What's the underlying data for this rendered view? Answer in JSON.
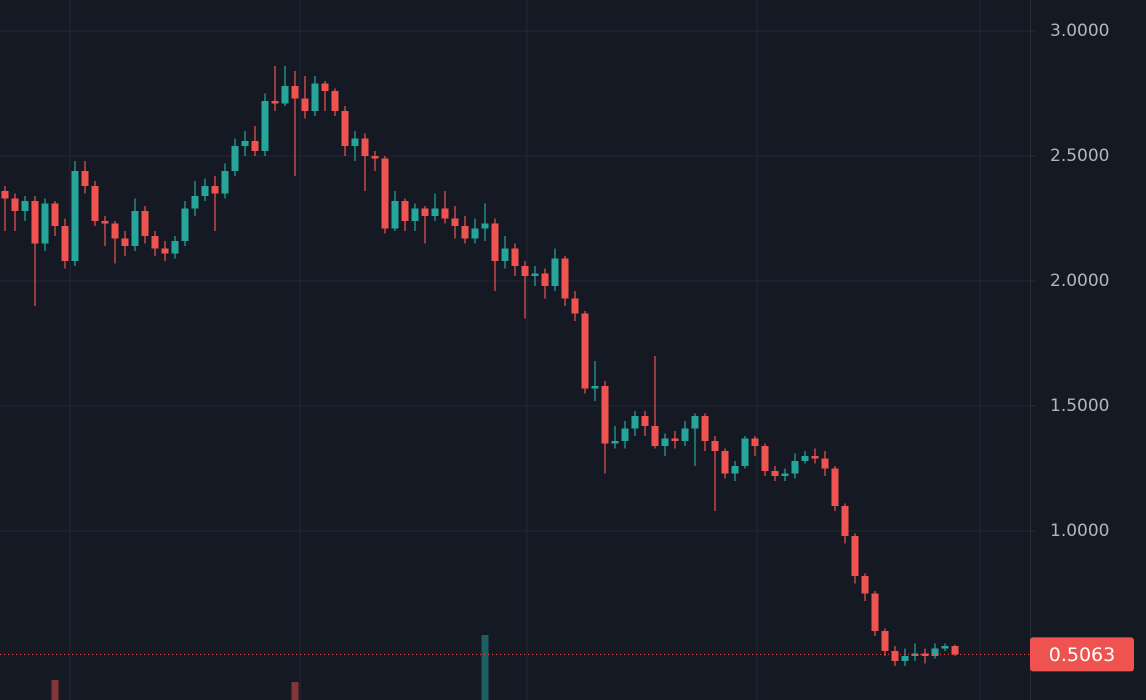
{
  "chart_data": {
    "type": "candlestick",
    "open": [
      2.36,
      2.33,
      2.28,
      2.32,
      2.15,
      2.31,
      2.22,
      2.08,
      2.44,
      2.38,
      2.24,
      2.23,
      2.17,
      2.14,
      2.28,
      2.18,
      2.13,
      2.11,
      2.16,
      2.29,
      2.34,
      2.38,
      2.35,
      2.44,
      2.54,
      2.56,
      2.52,
      2.72,
      2.71,
      2.78,
      2.73,
      2.68,
      2.79,
      2.76,
      2.68,
      2.54,
      2.57,
      2.5,
      2.49,
      2.21,
      2.32,
      2.24,
      2.29,
      2.26,
      2.29,
      2.25,
      2.22,
      2.17,
      2.21,
      2.23,
      2.08,
      2.13,
      2.06,
      2.02,
      2.03,
      1.98,
      2.09,
      1.93,
      1.87,
      1.57,
      1.58,
      1.35,
      1.36,
      1.41,
      1.46,
      1.42,
      1.34,
      1.37,
      1.36,
      1.41,
      1.46,
      1.36,
      1.32,
      1.23,
      1.26,
      1.37,
      1.34,
      1.24,
      1.22,
      1.23,
      1.28,
      1.3,
      1.29,
      1.25,
      1.1,
      0.98,
      0.82,
      0.75,
      0.6,
      0.52,
      0.48,
      0.5,
      0.51,
      0.5,
      0.53,
      0.54
    ],
    "high": [
      2.38,
      2.35,
      2.34,
      2.34,
      2.33,
      2.32,
      2.25,
      2.48,
      2.48,
      2.4,
      2.26,
      2.24,
      2.2,
      2.33,
      2.3,
      2.2,
      2.16,
      2.18,
      2.32,
      2.4,
      2.41,
      2.42,
      2.47,
      2.57,
      2.6,
      2.62,
      2.75,
      2.86,
      2.86,
      2.84,
      2.82,
      2.82,
      2.8,
      2.77,
      2.7,
      2.6,
      2.59,
      2.52,
      2.5,
      2.36,
      2.33,
      2.31,
      2.3,
      2.35,
      2.36,
      2.3,
      2.26,
      2.25,
      2.31,
      2.25,
      2.18,
      2.15,
      2.08,
      2.06,
      2.05,
      2.13,
      2.1,
      1.96,
      1.88,
      1.68,
      1.6,
      1.42,
      1.44,
      1.48,
      1.48,
      1.7,
      1.39,
      1.4,
      1.44,
      1.47,
      1.47,
      1.38,
      1.33,
      1.28,
      1.38,
      1.38,
      1.35,
      1.26,
      1.25,
      1.31,
      1.32,
      1.33,
      1.32,
      1.26,
      1.11,
      0.99,
      0.83,
      0.76,
      0.61,
      0.54,
      0.53,
      0.55,
      0.53,
      0.55,
      0.55,
      0.545
    ],
    "low": [
      2.2,
      2.2,
      2.24,
      1.9,
      2.12,
      2.18,
      2.05,
      2.06,
      2.35,
      2.22,
      2.14,
      2.07,
      2.1,
      2.12,
      2.15,
      2.1,
      2.08,
      2.09,
      2.14,
      2.26,
      2.32,
      2.2,
      2.33,
      2.42,
      2.5,
      2.5,
      2.5,
      2.68,
      2.7,
      2.42,
      2.65,
      2.66,
      2.68,
      2.66,
      2.5,
      2.48,
      2.36,
      2.44,
      2.19,
      2.2,
      2.2,
      2.2,
      2.15,
      2.24,
      2.23,
      2.17,
      2.15,
      2.15,
      2.16,
      1.96,
      2.05,
      2.02,
      1.85,
      1.98,
      1.93,
      1.96,
      1.9,
      1.84,
      1.55,
      1.52,
      1.23,
      1.33,
      1.33,
      1.38,
      1.38,
      1.33,
      1.3,
      1.33,
      1.34,
      1.26,
      1.32,
      1.08,
      1.21,
      1.2,
      1.25,
      1.3,
      1.22,
      1.2,
      1.2,
      1.21,
      1.27,
      1.27,
      1.22,
      1.08,
      0.95,
      0.79,
      0.72,
      0.58,
      0.5,
      0.46,
      0.46,
      0.48,
      0.47,
      0.49,
      0.52,
      0.5
    ],
    "close": [
      2.33,
      2.28,
      2.32,
      2.15,
      2.31,
      2.22,
      2.08,
      2.44,
      2.38,
      2.24,
      2.23,
      2.17,
      2.14,
      2.28,
      2.18,
      2.13,
      2.11,
      2.16,
      2.29,
      2.34,
      2.38,
      2.35,
      2.44,
      2.54,
      2.56,
      2.52,
      2.72,
      2.71,
      2.78,
      2.73,
      2.68,
      2.79,
      2.76,
      2.68,
      2.54,
      2.57,
      2.5,
      2.49,
      2.21,
      2.32,
      2.24,
      2.29,
      2.26,
      2.29,
      2.25,
      2.22,
      2.17,
      2.21,
      2.23,
      2.08,
      2.13,
      2.06,
      2.02,
      2.03,
      1.98,
      2.09,
      1.93,
      1.87,
      1.57,
      1.58,
      1.35,
      1.36,
      1.41,
      1.46,
      1.42,
      1.34,
      1.37,
      1.36,
      1.41,
      1.46,
      1.36,
      1.32,
      1.23,
      1.26,
      1.37,
      1.34,
      1.24,
      1.22,
      1.23,
      1.28,
      1.3,
      1.29,
      1.25,
      1.1,
      0.98,
      0.82,
      0.75,
      0.6,
      0.52,
      0.48,
      0.5,
      0.51,
      0.5,
      0.53,
      0.54,
      0.5063
    ],
    "volume": [
      null,
      null,
      null,
      null,
      null,
      20,
      null,
      null,
      null,
      null,
      null,
      null,
      null,
      null,
      null,
      null,
      null,
      null,
      null,
      null,
      null,
      null,
      null,
      null,
      null,
      null,
      null,
      null,
      null,
      18,
      null,
      null,
      null,
      null,
      null,
      null,
      null,
      null,
      null,
      null,
      null,
      null,
      null,
      null,
      null,
      null,
      null,
      null,
      65,
      null,
      null,
      null,
      null,
      null,
      null,
      null,
      null,
      null,
      null,
      null,
      null,
      null,
      null,
      null,
      null,
      null,
      null,
      null,
      null,
      null,
      null,
      null,
      null,
      null,
      null,
      null,
      null,
      null,
      null,
      null,
      null,
      null,
      null,
      null,
      null,
      null,
      null,
      null,
      null,
      null,
      null,
      null,
      null,
      null,
      null,
      null
    ],
    "up_color": "#26a69a",
    "down_color": "#ef5350",
    "ylim": [
      0.324,
      3.124
    ],
    "yticks": [
      {
        "value": 1,
        "label": "1.0000"
      },
      {
        "value": 1.5,
        "label": "1.5000"
      },
      {
        "value": 2,
        "label": "2.0000"
      },
      {
        "value": 2.5,
        "label": "2.5000"
      },
      {
        "value": 3,
        "label": "3.0000"
      }
    ],
    "grid": true
  }
}
